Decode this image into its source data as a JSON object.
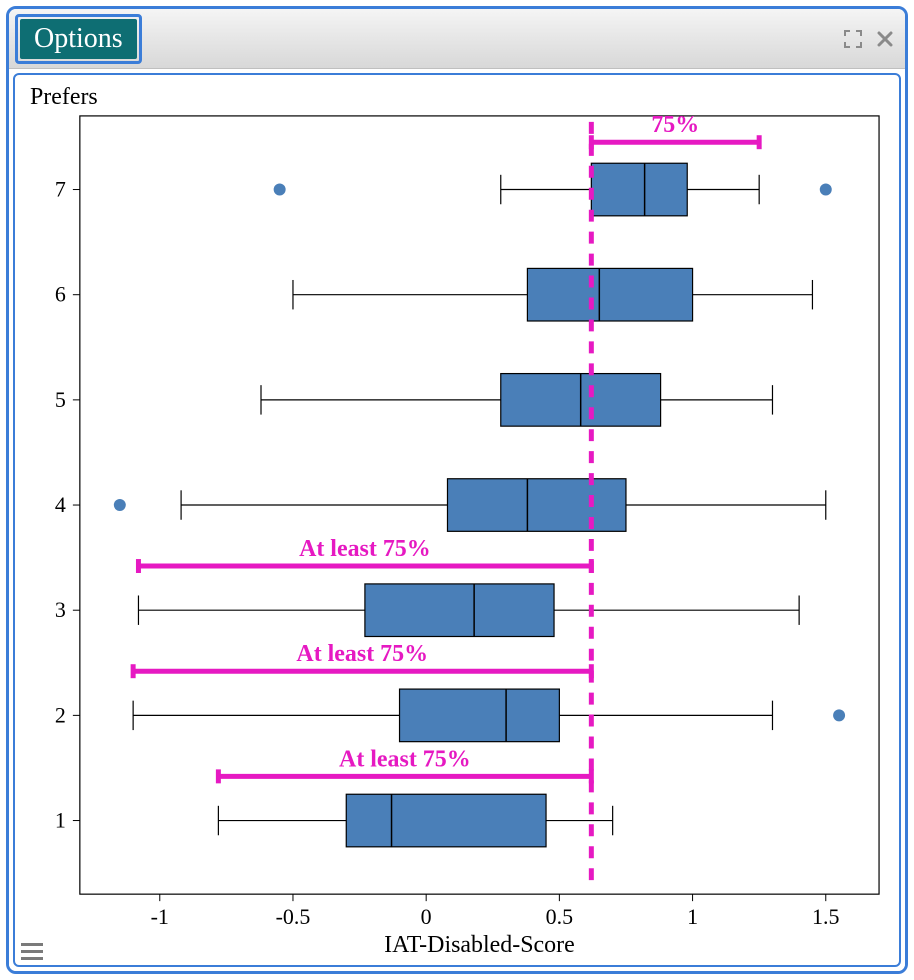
{
  "window": {
    "options_label": "Options"
  },
  "chart": {
    "type": "boxplot",
    "orientation": "horizontal",
    "xlabel": "IAT-Disabled-Score",
    "ylabel": "Prefers",
    "xlim": [
      -1.3,
      1.7
    ],
    "xticks": [
      -1,
      -0.5,
      0,
      0.5,
      1,
      1.5
    ],
    "yticks": [
      1,
      2,
      3,
      4,
      5,
      6,
      7
    ],
    "label_fontsize": 24,
    "tick_fontsize": 22,
    "box_fill": "#4a7fb8",
    "box_stroke": "#000000",
    "whisker_stroke": "#000000",
    "outlier_fill": "#4a7fb8",
    "outlier_radius": 6,
    "background_color": "#ffffff",
    "plot_border_color": "#000000",
    "series": [
      {
        "y": 1,
        "min": -0.78,
        "q1": -0.3,
        "median": -0.13,
        "q3": 0.45,
        "max": 0.7,
        "outliers": []
      },
      {
        "y": 2,
        "min": -1.1,
        "q1": -0.1,
        "median": 0.3,
        "q3": 0.5,
        "max": 1.3,
        "outliers": [
          1.55
        ]
      },
      {
        "y": 3,
        "min": -1.08,
        "q1": -0.23,
        "median": 0.18,
        "q3": 0.48,
        "max": 1.4,
        "outliers": []
      },
      {
        "y": 4,
        "min": -0.92,
        "q1": 0.08,
        "median": 0.38,
        "q3": 0.75,
        "max": 1.5,
        "outliers": [
          -1.15
        ]
      },
      {
        "y": 5,
        "min": -0.62,
        "q1": 0.28,
        "median": 0.58,
        "q3": 0.88,
        "max": 1.3,
        "outliers": []
      },
      {
        "y": 6,
        "min": -0.5,
        "q1": 0.38,
        "median": 0.65,
        "q3": 1.0,
        "max": 1.45,
        "outliers": []
      },
      {
        "y": 7,
        "min": 0.28,
        "q1": 0.62,
        "median": 0.82,
        "q3": 0.98,
        "max": 1.25,
        "outliers": [
          -0.55,
          1.5
        ]
      }
    ],
    "annotations": {
      "color": "#e619c2",
      "font_family": "Comic Sans MS, cursive",
      "font_size": 24,
      "font_weight": "bold",
      "reference_line": {
        "x": 0.62,
        "dash": "12,10",
        "width": 5
      },
      "brackets": [
        {
          "label": "75%",
          "y": 7,
          "x_start": 0.62,
          "x_end": 1.25,
          "label_above": true,
          "offset_rows": 0.45
        },
        {
          "label": "At least 75%",
          "y": 3,
          "x_start": -1.08,
          "x_end": 0.62,
          "label_above": true,
          "offset_rows": 0.42
        },
        {
          "label": "At least 75%",
          "y": 2,
          "x_start": -1.1,
          "x_end": 0.62,
          "label_above": true,
          "offset_rows": 0.42
        },
        {
          "label": "At least 75%",
          "y": 1,
          "x_start": -0.78,
          "x_end": 0.62,
          "label_above": true,
          "offset_rows": 0.42
        }
      ]
    }
  }
}
